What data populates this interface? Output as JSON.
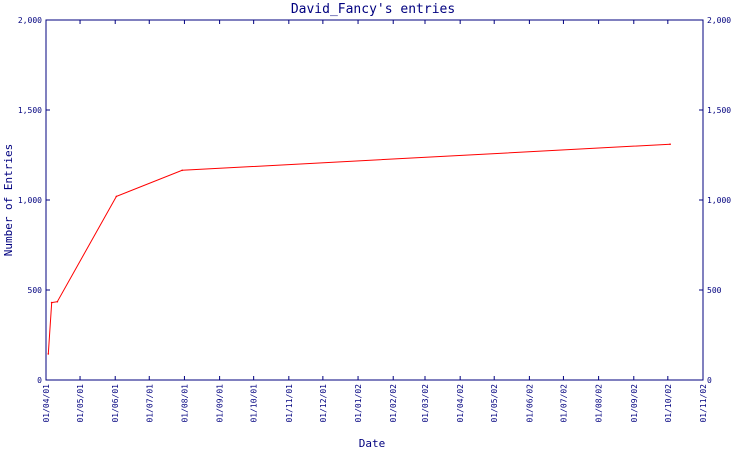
{
  "chart_data": {
    "type": "line",
    "title": "David_Fancy's entries",
    "xlabel": "Date",
    "ylabel": "Number of Entries",
    "ylim": [
      0,
      2000
    ],
    "xlim": [
      "2001-04-01",
      "2002-11-01"
    ],
    "yticks": [
      0,
      500,
      1000,
      1500,
      2000
    ],
    "ytick_labels": [
      "0",
      "500",
      "1,000",
      "1,500",
      "2,000"
    ],
    "xtick_labels": [
      "01/04/01",
      "01/05/01",
      "01/06/01",
      "01/07/01",
      "01/08/01",
      "01/09/01",
      "01/10/01",
      "01/11/01",
      "01/12/01",
      "01/01/02",
      "01/02/02",
      "01/03/02",
      "01/04/02",
      "01/05/02",
      "01/06/02",
      "01/07/02",
      "01/08/02",
      "01/09/02",
      "01/10/02",
      "01/11/02"
    ],
    "grid": false,
    "line_color": "#ff0000",
    "axis_color": "#00007f",
    "series": [
      {
        "x": [
          "2001-04-03",
          "2001-04-06",
          "2001-04-11",
          "2001-06-02",
          "2001-07-30",
          "2002-10-03"
        ],
        "values": [
          145,
          430,
          435,
          1020,
          1165,
          1310
        ]
      }
    ]
  }
}
